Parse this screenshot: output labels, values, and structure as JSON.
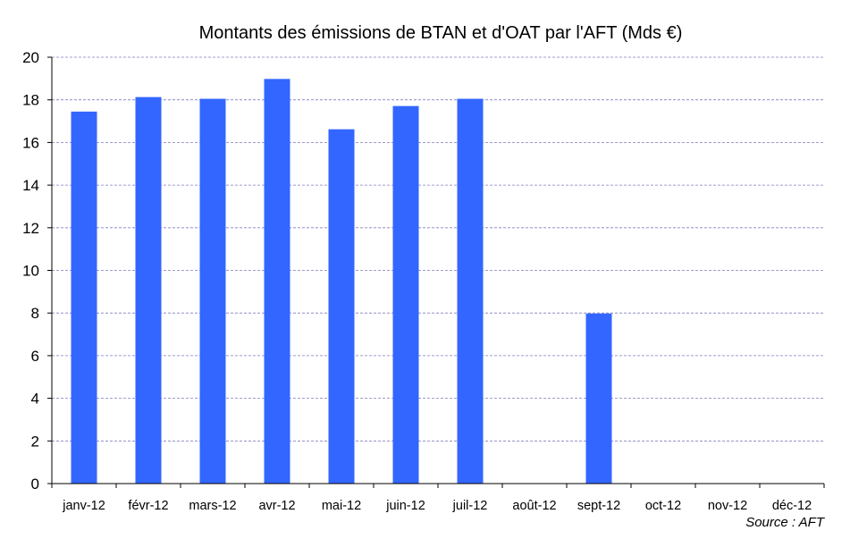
{
  "chart_data": {
    "type": "bar",
    "title": "Montants des émissions de BTAN et d'OAT par l'AFT (Mds €)",
    "categories": [
      "janv-12",
      "févr-12",
      "mars-12",
      "avr-12",
      "mai-12",
      "juin-12",
      "juil-12",
      "août-12",
      "sept-12",
      "oct-12",
      "nov-12",
      "déc-12"
    ],
    "values": [
      17.45,
      18.13,
      18.05,
      18.98,
      16.62,
      17.71,
      18.05,
      null,
      7.98,
      null,
      null,
      null
    ],
    "ylim": [
      0,
      20
    ],
    "yticks": [
      "0",
      "2",
      "4",
      "6",
      "8",
      "10",
      "12",
      "14",
      "16",
      "18",
      "20"
    ],
    "grid": true,
    "legend": "none",
    "bar_color": "#3366ff",
    "annotation": "Source : AFT"
  }
}
